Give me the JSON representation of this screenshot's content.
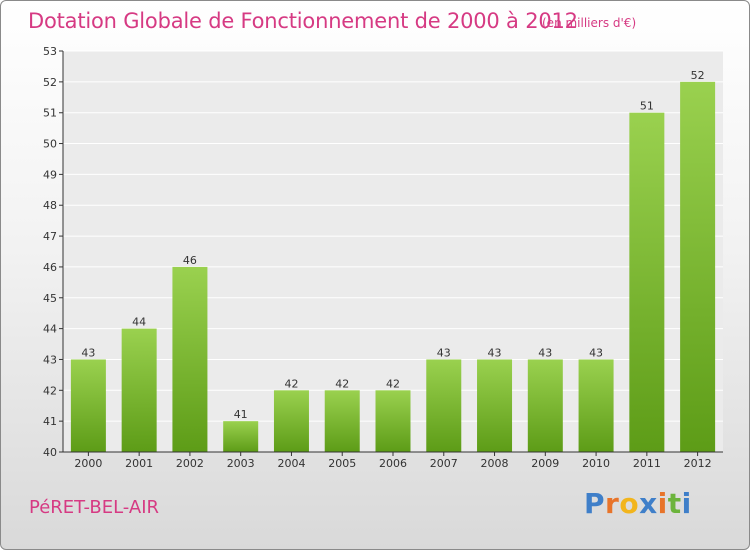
{
  "header": {
    "title": "Dotation Globale de Fonctionnement de 2000 à 2012",
    "unit": "(en milliers d'€)"
  },
  "footer": {
    "commune": "PéRET-BEL-AIR",
    "logo_letters": [
      "P",
      "r",
      "o",
      "x",
      "i",
      "t",
      "i"
    ],
    "logo_colors": [
      "#3f7fc9",
      "#e8742a",
      "#f2b51c",
      "#3f7fc9",
      "#e8742a",
      "#6cb43c",
      "#3f7fc9"
    ]
  },
  "colors": {
    "accent": "#d63a83",
    "bar_top": "#9ad14f",
    "bar_bottom": "#5d9c17",
    "plot_bg": "#ebebeb",
    "grid": "#ffffff"
  },
  "chart_data": {
    "type": "bar",
    "categories": [
      "2000",
      "2001",
      "2002",
      "2003",
      "2004",
      "2005",
      "2006",
      "2007",
      "2008",
      "2009",
      "2010",
      "2011",
      "2012"
    ],
    "values": [
      43,
      44,
      46,
      41,
      42,
      42,
      42,
      43,
      43,
      43,
      43,
      51,
      52
    ],
    "ylim": [
      40,
      53
    ],
    "yticks": [
      40,
      41,
      42,
      43,
      44,
      45,
      46,
      47,
      48,
      49,
      50,
      51,
      52,
      53
    ],
    "grid": true,
    "data_labels": true
  }
}
